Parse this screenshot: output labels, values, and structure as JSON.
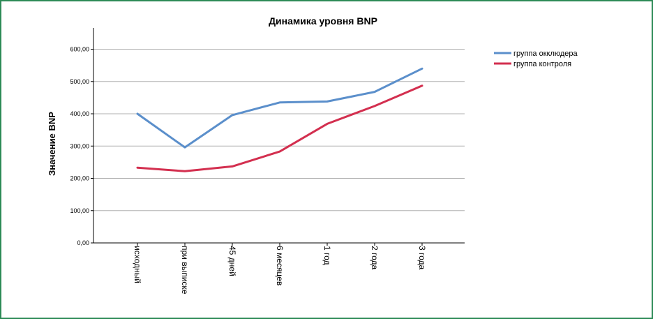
{
  "chart_data": {
    "type": "line",
    "title": "Динамика уровня BNP",
    "xlabel": "",
    "ylabel": "Значение BNP",
    "categories": [
      "исходный",
      "при выписке",
      "45 дней",
      "6 месяцев",
      "1 год",
      "2 года",
      "3 года"
    ],
    "ylim": [
      0,
      666
    ],
    "yticks": [
      "0,00",
      "100,00",
      "200,00",
      "300,00",
      "400,00",
      "500,00",
      "600,00"
    ],
    "grid": true,
    "legend_position": "top-right",
    "series": [
      {
        "name": "группа окклюдера",
        "color": "#5b8fcb",
        "values": [
          400,
          296,
          396,
          435,
          438,
          468,
          540
        ]
      },
      {
        "name": "группа контроля",
        "color": "#d32f4f",
        "values": [
          233,
          222,
          237,
          283,
          369,
          424,
          487
        ]
      }
    ]
  }
}
